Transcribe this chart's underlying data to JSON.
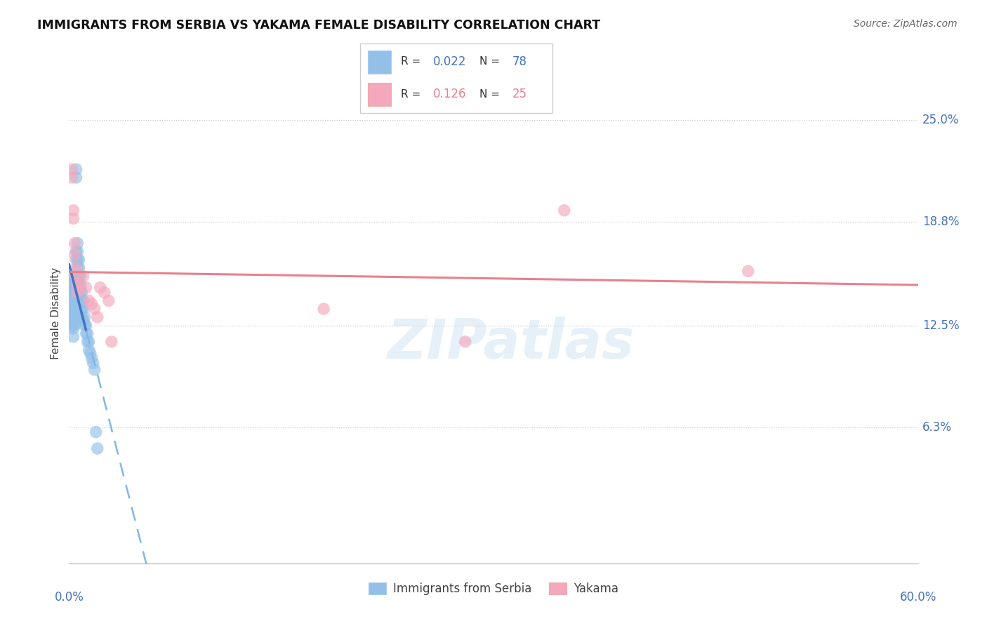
{
  "title": "IMMIGRANTS FROM SERBIA VS YAKAMA FEMALE DISABILITY CORRELATION CHART",
  "source": "Source: ZipAtlas.com",
  "ylabel": "Female Disability",
  "ytick_values": [
    0.063,
    0.125,
    0.188,
    0.25
  ],
  "ytick_labels": [
    "6.3%",
    "12.5%",
    "18.8%",
    "25.0%"
  ],
  "xlim": [
    0.0,
    0.6
  ],
  "ylim": [
    -0.02,
    0.285
  ],
  "color_blue": "#92C0E8",
  "color_pink": "#F4A8BC",
  "line_blue_solid": "#4472C4",
  "line_blue_dashed": "#7EB8E8",
  "line_pink": "#E8808C",
  "legend_r1": "0.022",
  "legend_n1": "78",
  "legend_r2": "0.126",
  "legend_n2": "25",
  "serbia_x": [
    0.002,
    0.002,
    0.002,
    0.002,
    0.002,
    0.002,
    0.002,
    0.002,
    0.002,
    0.002,
    0.003,
    0.003,
    0.003,
    0.003,
    0.003,
    0.003,
    0.003,
    0.003,
    0.003,
    0.003,
    0.004,
    0.004,
    0.004,
    0.004,
    0.004,
    0.004,
    0.004,
    0.004,
    0.005,
    0.005,
    0.005,
    0.005,
    0.005,
    0.005,
    0.005,
    0.005,
    0.005,
    0.006,
    0.006,
    0.006,
    0.006,
    0.006,
    0.006,
    0.006,
    0.006,
    0.007,
    0.007,
    0.007,
    0.007,
    0.007,
    0.007,
    0.008,
    0.008,
    0.008,
    0.008,
    0.008,
    0.008,
    0.009,
    0.009,
    0.009,
    0.009,
    0.01,
    0.01,
    0.01,
    0.011,
    0.011,
    0.012,
    0.012,
    0.013,
    0.013,
    0.014,
    0.014,
    0.015,
    0.016,
    0.017,
    0.018,
    0.019,
    0.02
  ],
  "serbia_y": [
    0.145,
    0.148,
    0.15,
    0.143,
    0.141,
    0.138,
    0.135,
    0.132,
    0.128,
    0.125,
    0.155,
    0.152,
    0.148,
    0.145,
    0.142,
    0.138,
    0.133,
    0.128,
    0.123,
    0.118,
    0.155,
    0.152,
    0.148,
    0.144,
    0.14,
    0.135,
    0.13,
    0.125,
    0.215,
    0.22,
    0.17,
    0.165,
    0.155,
    0.15,
    0.145,
    0.14,
    0.135,
    0.175,
    0.17,
    0.165,
    0.16,
    0.155,
    0.15,
    0.145,
    0.138,
    0.165,
    0.16,
    0.155,
    0.148,
    0.142,
    0.138,
    0.155,
    0.15,
    0.145,
    0.14,
    0.135,
    0.13,
    0.145,
    0.14,
    0.135,
    0.13,
    0.14,
    0.135,
    0.128,
    0.13,
    0.125,
    0.125,
    0.12,
    0.12,
    0.115,
    0.115,
    0.11,
    0.108,
    0.105,
    0.102,
    0.098,
    0.06,
    0.05
  ],
  "yakama_x": [
    0.002,
    0.002,
    0.003,
    0.003,
    0.004,
    0.004,
    0.005,
    0.005,
    0.006,
    0.006,
    0.008,
    0.01,
    0.012,
    0.014,
    0.016,
    0.018,
    0.02,
    0.022,
    0.025,
    0.028,
    0.03,
    0.18,
    0.28,
    0.35,
    0.48
  ],
  "yakama_y": [
    0.22,
    0.215,
    0.195,
    0.19,
    0.175,
    0.168,
    0.16,
    0.155,
    0.15,
    0.145,
    0.148,
    0.155,
    0.148,
    0.14,
    0.138,
    0.135,
    0.13,
    0.148,
    0.145,
    0.14,
    0.115,
    0.135,
    0.115,
    0.195,
    0.158
  ],
  "line_split_x": 0.012
}
